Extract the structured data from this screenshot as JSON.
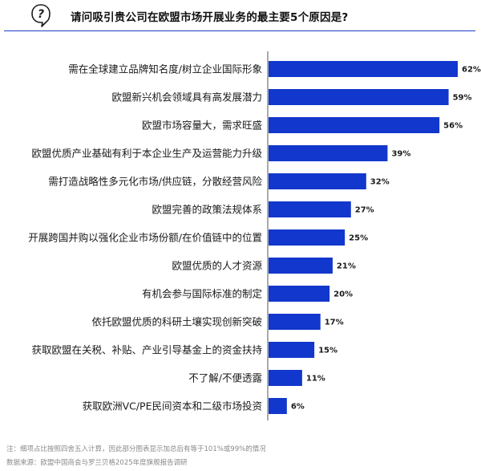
{
  "header": {
    "title": "请问吸引贵公司在欧盟市场开展业务的最主要5个原因是?",
    "icon": "question-icon"
  },
  "chart_data": {
    "type": "bar",
    "orientation": "horizontal",
    "categories": [
      "需在全球建立品牌知名度/树立企业国际形象",
      "欧盟新兴机会领域具有高发展潜力",
      "欧盟市场容量大，需求旺盛",
      "欧盟优质产业基础有利于本企业生产及运营能力升级",
      "需打造战略性多元化市场/供应链，分散经营风险",
      "欧盟完善的政策法规体系",
      "开展跨国并购以强化企业市场份额/在价值链中的位置",
      "欧盟优质的人才资源",
      "有机会参与国际标准的制定",
      "依托欧盟优质的科研土壤实现创新突破",
      "获取欧盟在关税、补贴、产业引导基金上的资金扶持",
      "不了解/不便透露",
      "获取欧洲VC/PE民间资本和二级市场投资"
    ],
    "values": [
      62,
      59,
      56,
      39,
      32,
      27,
      25,
      21,
      20,
      17,
      15,
      11,
      6
    ],
    "value_labels": [
      "62%",
      "59%",
      "56%",
      "39%",
      "32%",
      "27%",
      "25%",
      "21%",
      "20%",
      "17%",
      "15%",
      "11%",
      "6%"
    ],
    "unit": "%",
    "xlim": [
      0,
      62
    ],
    "grid": false,
    "bar_color": "#1237cc",
    "axis_color": "#555555"
  },
  "footer": {
    "note": "注：细项占比按照四舍五入计算，因此部分图表显示加总后有等于101%或99%的情况",
    "source": "数据来源：欧盟中国商会与罗兰贝格2025年度旗舰报告调研"
  }
}
